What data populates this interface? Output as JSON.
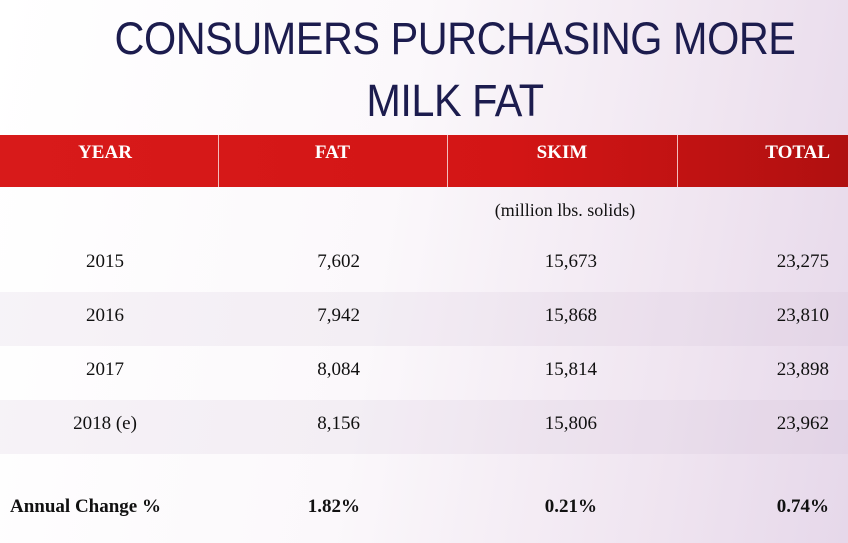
{
  "title": "CONSUMERS PURCHASING MORE MILK FAT",
  "table": {
    "header": [
      "YEAR",
      "FAT",
      "SKIM",
      "TOTAL"
    ],
    "unit_note": "(million lbs. solids)",
    "rows": [
      [
        "2015",
        "7,602",
        "15,673",
        "23,275"
      ],
      [
        "2016",
        "7,942",
        "15,868",
        "23,810"
      ],
      [
        "2017",
        "8,084",
        "15,814",
        "23,898"
      ],
      [
        "2018 (e)",
        "8,156",
        "15,806",
        "23,962"
      ]
    ],
    "footer": [
      "Annual Change %",
      "1.82%",
      "0.21%",
      "0.74%"
    ]
  }
}
